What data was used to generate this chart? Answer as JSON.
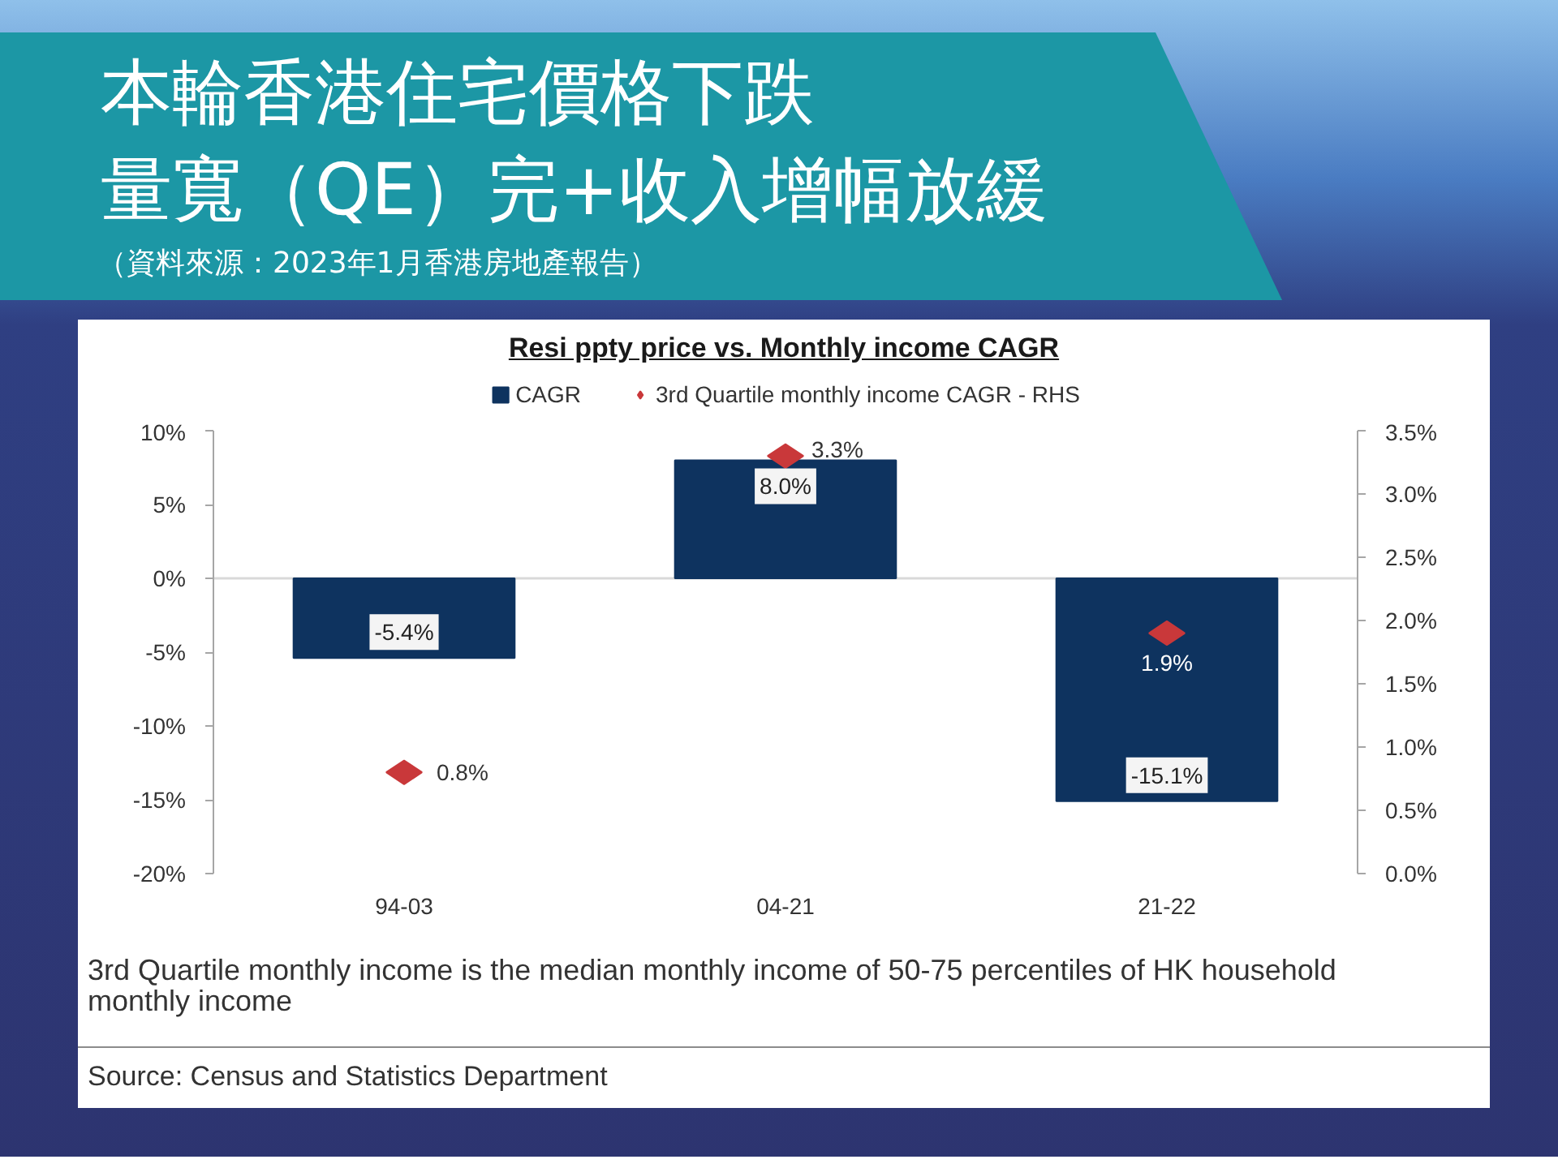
{
  "chart_data": {
    "type": "bar",
    "title": "本輪香港住宅價格下跌",
    "subtitle": "量寬（QE）完+收入增幅放緩",
    "annotations": [
      "（資料來源：2023年1月香港房地產報告）",
      "Resi ppty price vs. Monthly income CAGR",
      "3rd Quartile monthly income is the median monthly income of 50-75 percentiles of HK household monthly income",
      "Source: Census and Statistics Department"
    ],
    "categories": [
      "94-03",
      "04-21",
      "21-22"
    ],
    "series": [
      {
        "name": "CAGR",
        "color": "#0e335f",
        "values": [
          -5.4,
          8.0,
          -15.1
        ],
        "value_labels": [
          "-5.4%",
          "8.0%",
          "-15.1%"
        ]
      },
      {
        "name": "3rd Quartile monthly income CAGR - RHS",
        "type": "scatter",
        "axis": "y2",
        "color": "#c9383a",
        "values": [
          0.8,
          3.3,
          1.9
        ],
        "value_labels": [
          "0.8%",
          "3.3%",
          "1.9%"
        ]
      }
    ],
    "ylim": [
      -20,
      10
    ],
    "yticks": [
      {
        "value": -20,
        "label": "-20%"
      },
      {
        "value": -15,
        "label": "-15%"
      },
      {
        "value": -10,
        "label": "-10%"
      },
      {
        "value": -5,
        "label": "-5%"
      },
      {
        "value": 0,
        "label": "0%"
      },
      {
        "value": 5,
        "label": "5%"
      },
      {
        "value": 10,
        "label": "10%"
      }
    ],
    "y2lim": [
      0,
      3.5
    ],
    "y2ticks": [
      {
        "value": 0,
        "label": "0.0%"
      },
      {
        "value": 0.5,
        "label": "0.5%"
      },
      {
        "value": 1,
        "label": "1.0%"
      },
      {
        "value": 1.5,
        "label": "1.5%"
      },
      {
        "value": 2,
        "label": "2.0%"
      },
      {
        "value": 2.5,
        "label": "2.5%"
      },
      {
        "value": 3,
        "label": "3.0%"
      },
      {
        "value": 3.5,
        "label": "3.5%"
      }
    ],
    "ref_lines": [
      {
        "axis": "y",
        "value": 0,
        "color": "#d9d9d9"
      }
    ],
    "grid": false,
    "legend": "top",
    "marker": "diamond"
  }
}
